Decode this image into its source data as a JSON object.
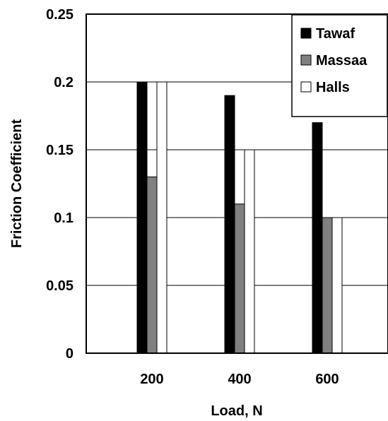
{
  "chart_data": {
    "type": "bar",
    "xlabel": "Load, N",
    "ylabel": "Friction Coefficient",
    "categories": [
      "200",
      "400",
      "600"
    ],
    "series": [
      {
        "name": "Tawaf",
        "values": [
          0.2,
          0.19,
          0.17
        ],
        "color": "#000000"
      },
      {
        "name": "Massaa",
        "values": [
          0.13,
          0.11,
          0.1
        ],
        "color": "#808080"
      },
      {
        "name": "Halls",
        "values": [
          0.2,
          0.15,
          0.1
        ],
        "color": "#ffffff"
      }
    ],
    "ylim": [
      0,
      0.25
    ],
    "yticks": [
      "0",
      "0.05",
      "0.1",
      "0.15",
      "0.2",
      "0.25"
    ],
    "grid": true,
    "legend": "top-right"
  }
}
